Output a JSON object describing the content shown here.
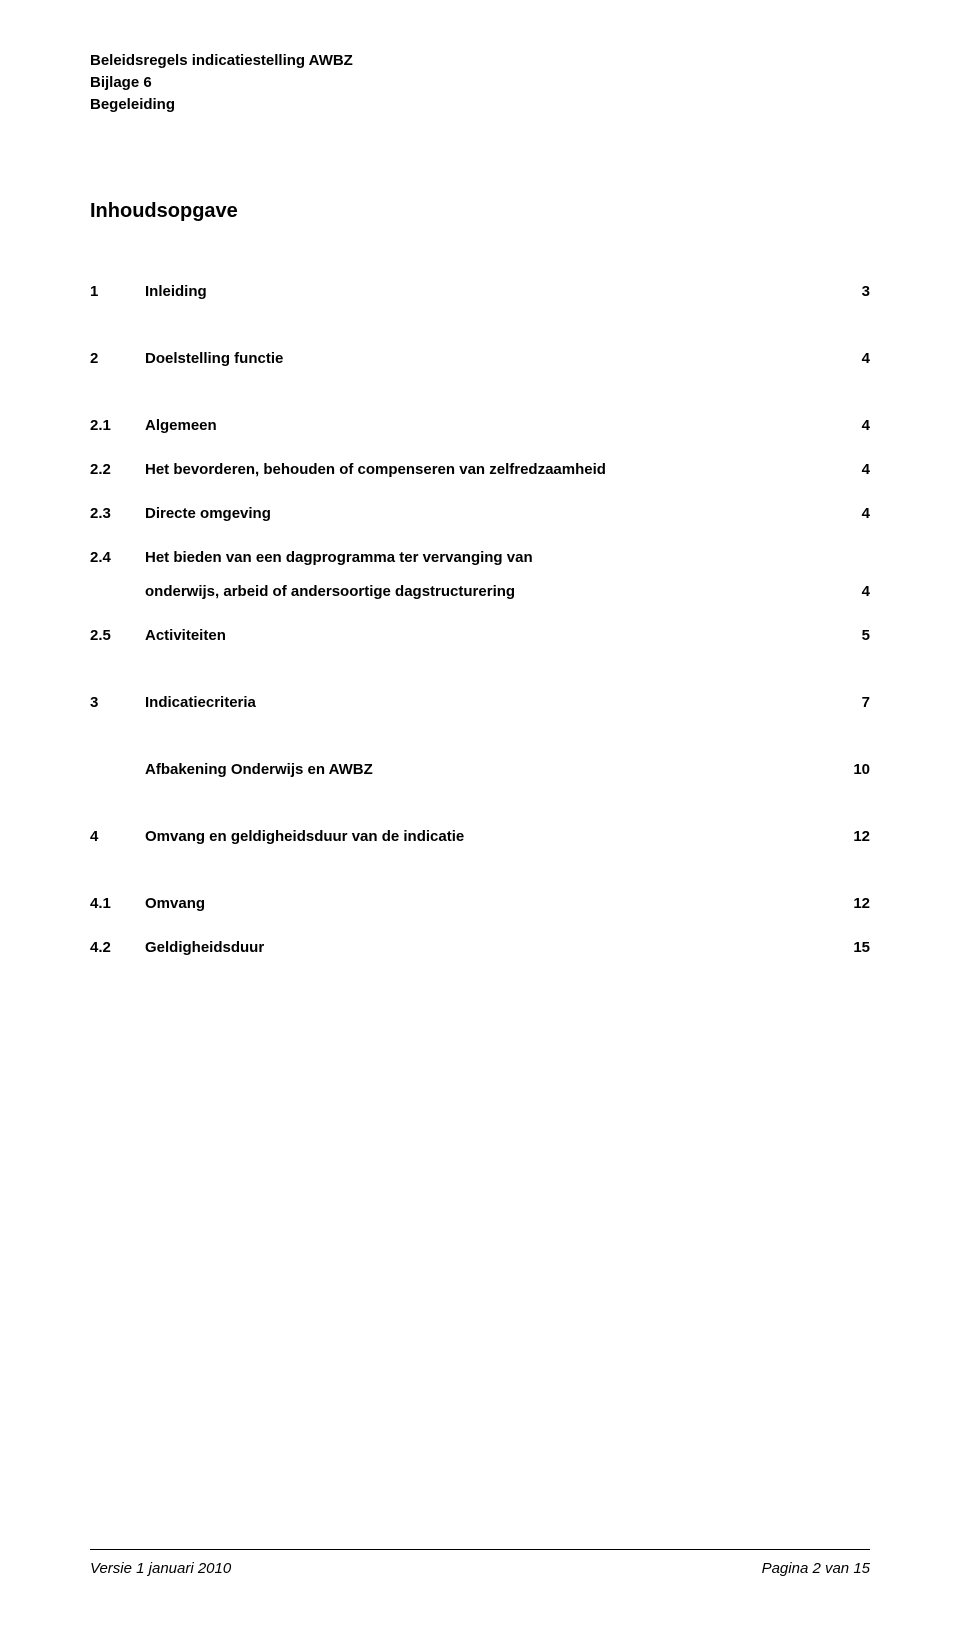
{
  "header": {
    "line1": "Beleidsregels indicatiestelling AWBZ",
    "line2": "Bijlage 6",
    "line3": "Begeleiding"
  },
  "toc_title": "Inhoudsopgave",
  "toc": [
    {
      "num": "1",
      "label": "Inleiding",
      "page": "3",
      "level": 1,
      "gap_before": false
    },
    {
      "num": "2",
      "label": "Doelstelling functie",
      "page": "4",
      "level": 1,
      "gap_before": false
    },
    {
      "num": "2.1",
      "label": "Algemeen",
      "page": "4",
      "level": 2,
      "gap_before": false
    },
    {
      "num": "2.2",
      "label": "Het bevorderen, behouden of compenseren van zelfredzaamheid",
      "page": "4",
      "level": 2,
      "gap_before": false
    },
    {
      "num": "2.3",
      "label": "Directe omgeving",
      "page": "4",
      "level": 2,
      "gap_before": false
    },
    {
      "num": "2.4",
      "label": "Het bieden van een dagprogramma ter vervanging van",
      "page": "",
      "level": 2,
      "gap_before": false
    },
    {
      "num": "",
      "label": "onderwijs, arbeid of andersoortige dagstructurering",
      "page": "4",
      "level": 2,
      "gap_before": false,
      "continuation": true
    },
    {
      "num": "2.5",
      "label": "Activiteiten",
      "page": "5",
      "level": 2,
      "gap_before": false
    },
    {
      "num": "3",
      "label": "Indicatiecriteria",
      "page": "7",
      "level": 1,
      "gap_before": true
    },
    {
      "num": "",
      "label": "Afbakening Onderwijs en AWBZ",
      "page": "10",
      "level": 2,
      "gap_before": false,
      "continuation": false,
      "no_num_indent": true
    },
    {
      "num": "4",
      "label": "Omvang en geldigheidsduur van de indicatie",
      "page": "12",
      "level": 1,
      "gap_before": true
    },
    {
      "num": "4.1",
      "label": "Omvang",
      "page": "12",
      "level": 2,
      "gap_before": false
    },
    {
      "num": "4.2",
      "label": "Geldigheidsduur",
      "page": "15",
      "level": 2,
      "gap_before": false
    }
  ],
  "footer": {
    "left": "Versie 1 januari 2010",
    "right": "Pagina 2 van 15"
  }
}
